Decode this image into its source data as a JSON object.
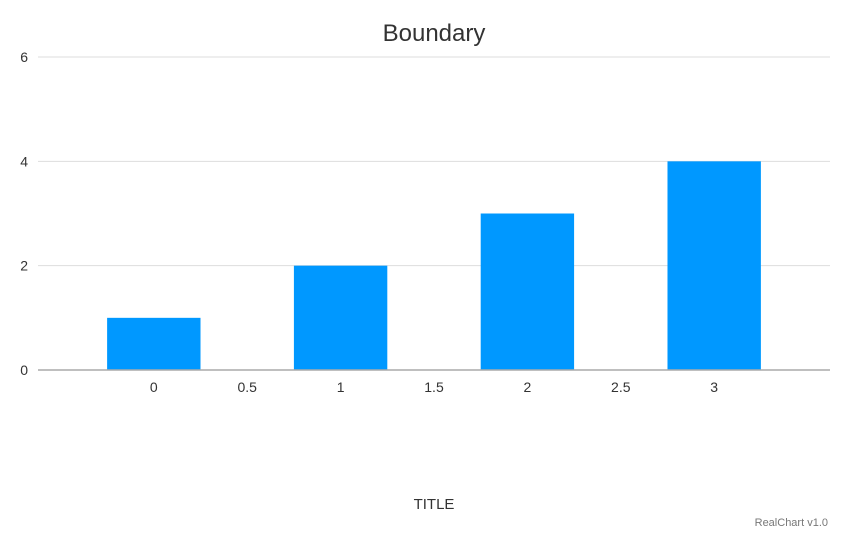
{
  "chart_data": {
    "type": "bar",
    "title": "Boundary",
    "xlabel": "TITLE",
    "ylabel": "",
    "x": [
      0,
      1,
      2,
      3
    ],
    "values": [
      1,
      2,
      3,
      4
    ],
    "xlim": [
      -0.62,
      3.62
    ],
    "ylim": [
      0,
      6
    ],
    "bar_width": 0.5,
    "x_ticks": [
      0,
      0.5,
      1,
      1.5,
      2,
      2.5,
      3
    ],
    "x_tick_labels": [
      "0",
      "0.5",
      "1",
      "1.5",
      "2",
      "2.5",
      "3"
    ],
    "y_ticks": [
      0,
      2,
      4,
      6
    ],
    "y_tick_labels": [
      "0",
      "2",
      "4",
      "6"
    ],
    "grid": true,
    "legend": "none",
    "colors": {
      "bar": "#0098ff",
      "grid": "#dddddd",
      "axis": "#aaaaaa"
    }
  },
  "credits": {
    "text": "RealChart v1.0"
  }
}
